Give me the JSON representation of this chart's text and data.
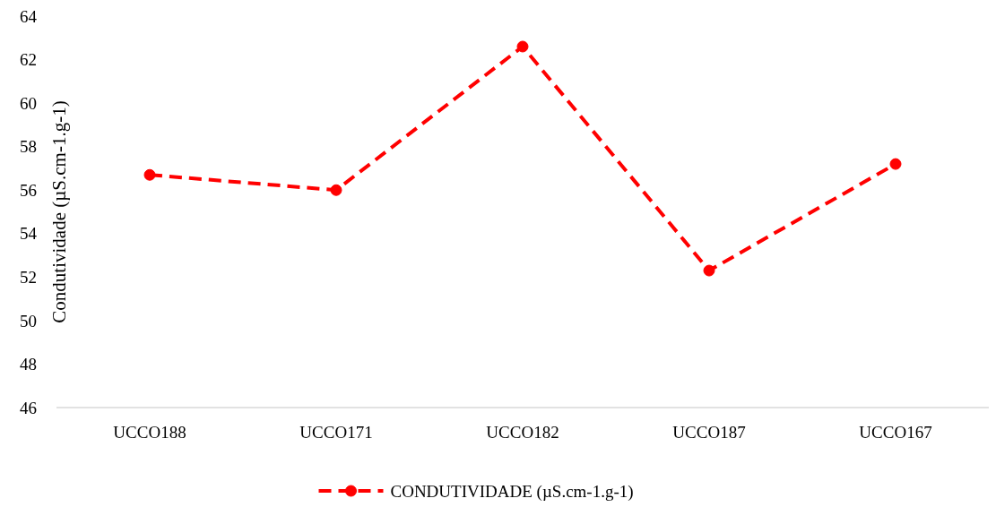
{
  "chart_data": {
    "type": "line",
    "ylabel": "Condutividade (µS.cm-1.g-1)",
    "categories": [
      "UCCO188",
      "UCCO171",
      "UCCO182",
      "UCCO187",
      "UCCO167"
    ],
    "series": [
      {
        "name": "CONDUTIVIDADE (µS.cm-1.g-1)",
        "color": "#ff0000",
        "values": [
          56.7,
          56.0,
          62.6,
          52.3,
          57.2
        ]
      }
    ],
    "ylim": [
      46,
      64
    ],
    "yticks": [
      46,
      48,
      50,
      52,
      54,
      56,
      58,
      60,
      62,
      64
    ],
    "grid": false,
    "legend": "bottom",
    "marker": "circle",
    "line_style": "dashed"
  }
}
